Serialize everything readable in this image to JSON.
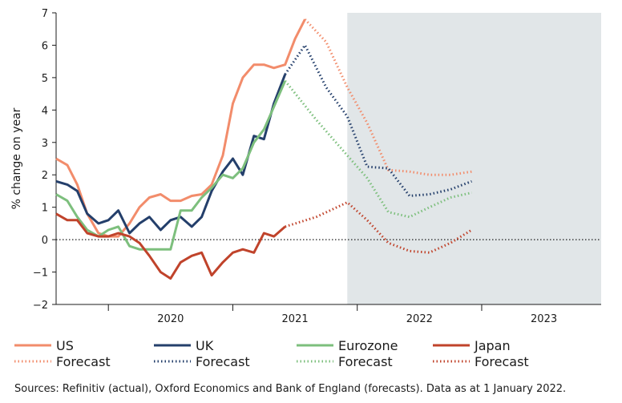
{
  "chart_data": {
    "type": "line",
    "ylabel": "% change on year",
    "xlabel": "",
    "ylim": [
      -2,
      7
    ],
    "yticks": [
      -2,
      -1,
      0,
      1,
      2,
      3,
      4,
      5,
      6,
      7
    ],
    "x_categories": [
      "2020",
      "2021",
      "2022",
      "2023"
    ],
    "xlim": [
      2019.58,
      2023.96
    ],
    "forecast_start": 2021.92,
    "grid": false,
    "zero_line": "dotted",
    "source": "Sources: Refinitiv (actual), Oxford Economics and Bank of England (forecasts). Data as at 1 January 2022.",
    "colors": {
      "US": "#f28c6b",
      "UK": "#243f6b",
      "Eurozone": "#7dbf7d",
      "Japan": "#c0432b",
      "forecast_shade": "#e1e6e8"
    },
    "legend": [
      {
        "label": "US",
        "key": "US",
        "style": "solid"
      },
      {
        "label": "UK",
        "key": "UK",
        "style": "solid"
      },
      {
        "label": "Eurozone",
        "key": "Eurozone",
        "style": "solid"
      },
      {
        "label": "Japan",
        "key": "Japan",
        "style": "solid"
      },
      {
        "label": "Forecast",
        "key": "US",
        "style": "dotted"
      },
      {
        "label": "Forecast",
        "key": "UK",
        "style": "dotted"
      },
      {
        "label": "Forecast",
        "key": "Eurozone",
        "style": "dotted"
      },
      {
        "label": "Forecast",
        "key": "Japan",
        "style": "dotted"
      }
    ],
    "series": [
      {
        "name": "US",
        "key": "US",
        "actual": [
          [
            2019.58,
            2.5
          ],
          [
            2019.67,
            2.3
          ],
          [
            2019.75,
            1.7
          ],
          [
            2019.83,
            0.8
          ],
          [
            2019.92,
            0.2
          ],
          [
            2020.0,
            0.1
          ],
          [
            2020.08,
            0.1
          ],
          [
            2020.17,
            0.5
          ],
          [
            2020.25,
            1.0
          ],
          [
            2020.33,
            1.3
          ],
          [
            2020.42,
            1.4
          ],
          [
            2020.5,
            1.2
          ],
          [
            2020.58,
            1.2
          ],
          [
            2020.67,
            1.35
          ],
          [
            2020.75,
            1.4
          ],
          [
            2020.83,
            1.7
          ],
          [
            2020.92,
            2.6
          ],
          [
            2021.0,
            4.2
          ],
          [
            2021.08,
            5.0
          ],
          [
            2021.17,
            5.4
          ],
          [
            2021.25,
            5.4
          ],
          [
            2021.33,
            5.3
          ],
          [
            2021.42,
            5.4
          ],
          [
            2021.5,
            6.2
          ],
          [
            2021.58,
            6.8
          ]
        ],
        "forecast": [
          [
            2021.58,
            6.8
          ],
          [
            2021.75,
            6.1
          ],
          [
            2021.92,
            4.7
          ],
          [
            2022.08,
            3.6
          ],
          [
            2022.25,
            2.15
          ],
          [
            2022.42,
            2.1
          ],
          [
            2022.58,
            2.0
          ],
          [
            2022.75,
            2.0
          ],
          [
            2022.92,
            2.1
          ]
        ]
      },
      {
        "name": "UK",
        "key": "UK",
        "actual": [
          [
            2019.58,
            1.8
          ],
          [
            2019.67,
            1.7
          ],
          [
            2019.75,
            1.5
          ],
          [
            2019.83,
            0.8
          ],
          [
            2019.92,
            0.5
          ],
          [
            2020.0,
            0.6
          ],
          [
            2020.08,
            0.9
          ],
          [
            2020.17,
            0.2
          ],
          [
            2020.25,
            0.5
          ],
          [
            2020.33,
            0.7
          ],
          [
            2020.42,
            0.3
          ],
          [
            2020.5,
            0.6
          ],
          [
            2020.58,
            0.7
          ],
          [
            2020.67,
            0.4
          ],
          [
            2020.75,
            0.7
          ],
          [
            2020.83,
            1.5
          ],
          [
            2020.92,
            2.1
          ],
          [
            2021.0,
            2.5
          ],
          [
            2021.08,
            2.0
          ],
          [
            2021.17,
            3.2
          ],
          [
            2021.25,
            3.1
          ],
          [
            2021.33,
            4.2
          ],
          [
            2021.42,
            5.1
          ]
        ],
        "forecast": [
          [
            2021.42,
            5.1
          ],
          [
            2021.58,
            6.0
          ],
          [
            2021.75,
            4.7
          ],
          [
            2021.92,
            3.8
          ],
          [
            2022.08,
            2.25
          ],
          [
            2022.25,
            2.2
          ],
          [
            2022.42,
            1.35
          ],
          [
            2022.58,
            1.4
          ],
          [
            2022.75,
            1.55
          ],
          [
            2022.92,
            1.8
          ]
        ]
      },
      {
        "name": "Eurozone",
        "key": "Eurozone",
        "actual": [
          [
            2019.58,
            1.4
          ],
          [
            2019.67,
            1.2
          ],
          [
            2019.75,
            0.7
          ],
          [
            2019.83,
            0.3
          ],
          [
            2019.92,
            0.1
          ],
          [
            2020.0,
            0.3
          ],
          [
            2020.08,
            0.4
          ],
          [
            2020.17,
            -0.2
          ],
          [
            2020.25,
            -0.3
          ],
          [
            2020.33,
            -0.3
          ],
          [
            2020.42,
            -0.3
          ],
          [
            2020.5,
            -0.3
          ],
          [
            2020.58,
            0.9
          ],
          [
            2020.67,
            0.9
          ],
          [
            2020.75,
            1.3
          ],
          [
            2020.83,
            1.6
          ],
          [
            2020.92,
            2.0
          ],
          [
            2021.0,
            1.9
          ],
          [
            2021.08,
            2.2
          ],
          [
            2021.17,
            3.0
          ],
          [
            2021.25,
            3.4
          ],
          [
            2021.33,
            4.1
          ],
          [
            2021.42,
            4.9
          ]
        ],
        "forecast": [
          [
            2021.42,
            4.9
          ],
          [
            2021.67,
            3.7
          ],
          [
            2021.92,
            2.6
          ],
          [
            2022.08,
            1.9
          ],
          [
            2022.25,
            0.85
          ],
          [
            2022.42,
            0.7
          ],
          [
            2022.58,
            1.0
          ],
          [
            2022.75,
            1.3
          ],
          [
            2022.92,
            1.45
          ]
        ]
      },
      {
        "name": "Japan",
        "key": "Japan",
        "actual": [
          [
            2019.58,
            0.8
          ],
          [
            2019.67,
            0.6
          ],
          [
            2019.75,
            0.6
          ],
          [
            2019.83,
            0.2
          ],
          [
            2019.92,
            0.1
          ],
          [
            2020.0,
            0.1
          ],
          [
            2020.08,
            0.2
          ],
          [
            2020.17,
            0.1
          ],
          [
            2020.25,
            -0.1
          ],
          [
            2020.33,
            -0.5
          ],
          [
            2020.42,
            -1.0
          ],
          [
            2020.5,
            -1.2
          ],
          [
            2020.58,
            -0.7
          ],
          [
            2020.67,
            -0.5
          ],
          [
            2020.75,
            -0.4
          ],
          [
            2020.83,
            -1.1
          ],
          [
            2020.92,
            -0.7
          ],
          [
            2021.0,
            -0.4
          ],
          [
            2021.08,
            -0.3
          ],
          [
            2021.17,
            -0.4
          ],
          [
            2021.25,
            0.2
          ],
          [
            2021.33,
            0.1
          ],
          [
            2021.42,
            0.4
          ]
        ],
        "forecast": [
          [
            2021.42,
            0.4
          ],
          [
            2021.67,
            0.7
          ],
          [
            2021.92,
            1.15
          ],
          [
            2022.08,
            0.6
          ],
          [
            2022.25,
            -0.1
          ],
          [
            2022.42,
            -0.35
          ],
          [
            2022.58,
            -0.4
          ],
          [
            2022.75,
            -0.1
          ],
          [
            2022.92,
            0.3
          ]
        ]
      }
    ]
  }
}
